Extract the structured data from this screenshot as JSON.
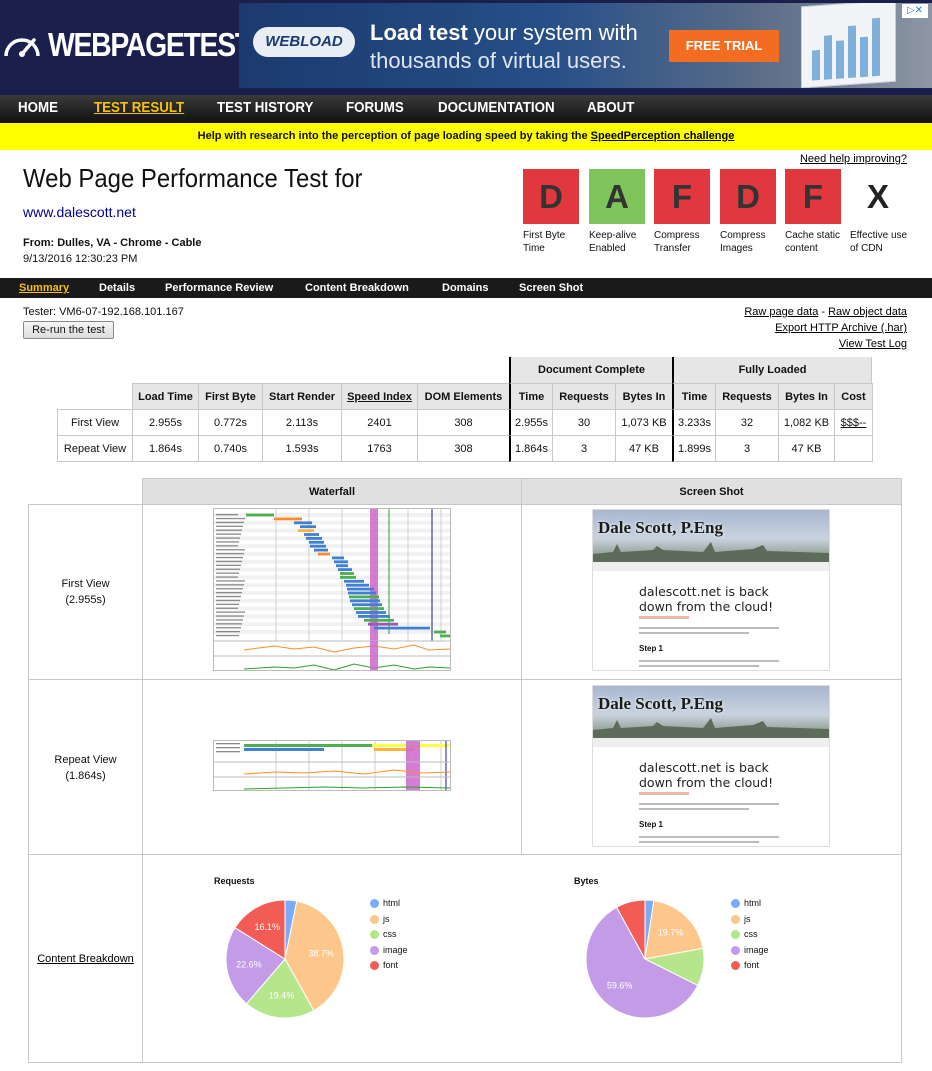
{
  "header": {
    "logo_text": "WEBPAGETEST"
  },
  "ad": {
    "brand": "WEBLOAD",
    "line1_bold": "Load test",
    "line1_rest": " your system with",
    "line2": "thousands of virtual users.",
    "cta": "FREE TRIAL"
  },
  "nav": {
    "items": [
      "HOME",
      "TEST RESULT",
      "TEST HISTORY",
      "FORUMS",
      "DOCUMENTATION",
      "ABOUT"
    ],
    "active": "TEST RESULT"
  },
  "banner": {
    "text": "Help with research into the perception of page loading speed by taking the ",
    "link": "SpeedPerception challenge"
  },
  "test": {
    "title": "Web Page Performance Test for",
    "url": "www.dalescott.net",
    "from": "From: Dulles, VA - Chrome - Cable",
    "date": "9/13/2016 12:30:23 PM",
    "help": "Need help improving?"
  },
  "grades": [
    {
      "grade": "D",
      "label": "First Byte Time",
      "color": "#e0383e"
    },
    {
      "grade": "A",
      "label": "Keep-alive Enabled",
      "color": "#7ec45a"
    },
    {
      "grade": "F",
      "label": "Compress Transfer",
      "color": "#e0383e"
    },
    {
      "grade": "D",
      "label": "Compress Images",
      "color": "#e0383e"
    },
    {
      "grade": "F",
      "label": "Cache static content",
      "color": "#e0383e"
    },
    {
      "grade": "X",
      "label": "Effective use of CDN",
      "color": "#ffffff"
    }
  ],
  "subnav": {
    "items": [
      "Summary",
      "Details",
      "Performance Review",
      "Content Breakdown",
      "Domains",
      "Screen Shot"
    ],
    "active": "Summary"
  },
  "tester": "Tester: VM6-07-192.168.101.167",
  "rerun": "Re-run the test",
  "links": {
    "raw_page": "Raw page data",
    "sep": " - ",
    "raw_object": "Raw object data",
    "har": "Export HTTP Archive (.har)",
    "log": "View Test Log"
  },
  "results": {
    "group_doc": "Document Complete",
    "group_full": "Fully Loaded",
    "columns": [
      "Load Time",
      "First Byte",
      "Start Render",
      "Speed Index",
      "DOM Elements",
      "Time",
      "Requests",
      "Bytes In",
      "Time",
      "Requests",
      "Bytes In",
      "Cost"
    ],
    "rows": [
      {
        "label": "First View",
        "values": [
          "2.955s",
          "0.772s",
          "2.113s",
          "2401",
          "308",
          "2.955s",
          "30",
          "1,073 KB",
          "3.233s",
          "32",
          "1,082 KB",
          "$$$--"
        ]
      },
      {
        "label": "Repeat View",
        "values": [
          "1.864s",
          "0.740s",
          "1.593s",
          "1763",
          "308",
          "1.864s",
          "3",
          "47 KB",
          "1.899s",
          "3",
          "47 KB",
          ""
        ]
      }
    ]
  },
  "lower": {
    "waterfall_header": "Waterfall",
    "screenshot_header": "Screen Shot",
    "first_label": "First View",
    "first_time": "(2.955s)",
    "repeat_label": "Repeat View",
    "repeat_time": "(1.864s)",
    "breakdown_link": "Content Breakdown"
  },
  "screenshot": {
    "site_name": "Dale Scott, P.Eng",
    "headline": "dalescott.net is back down from the cloud!",
    "step": "Step 1"
  },
  "chart_data": [
    {
      "type": "pie",
      "title": "Requests",
      "categories": [
        "html",
        "js",
        "css",
        "image",
        "font"
      ],
      "values": [
        3.2,
        38.7,
        19.4,
        22.6,
        16.1
      ],
      "colors": [
        "#7baaf7",
        "#fdc68b",
        "#b5e68c",
        "#c39be6",
        "#f25c54"
      ],
      "labeled": [
        "",
        "38.7%",
        "19.4%",
        "22.6%",
        "16.1%"
      ]
    },
    {
      "type": "pie",
      "title": "Bytes",
      "categories": [
        "html",
        "js",
        "css",
        "image",
        "font"
      ],
      "values": [
        2.4,
        19.7,
        10.3,
        59.6,
        8.0
      ],
      "colors": [
        "#7baaf7",
        "#fdc68b",
        "#b5e68c",
        "#c39be6",
        "#f25c54"
      ],
      "labeled": [
        "",
        "19.7%",
        "",
        "59.6%",
        ""
      ]
    }
  ]
}
